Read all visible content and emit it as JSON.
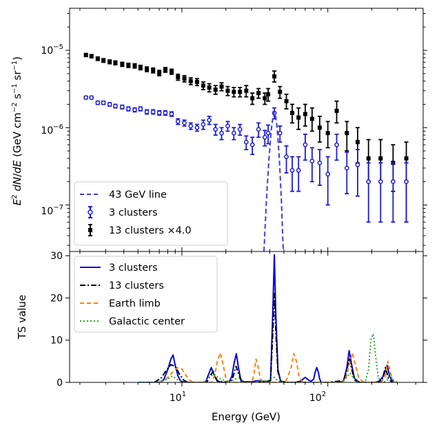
{
  "chart_data": [
    {
      "type": "scatter",
      "panel": "top",
      "xscale": "log",
      "yscale": "log",
      "xlim": [
        1.7,
        450
      ],
      "ylim": [
        2.5e-08,
        3.5e-05
      ],
      "ylabel": "E^2 dN/dE (GeV cm^-2 s^-1 sr^-1)",
      "ytick_values": [
        1e-07,
        1e-06,
        1e-05
      ],
      "ytick_labels": [
        {
          "base": "10",
          "exp": "−7"
        },
        {
          "base": "10",
          "exp": "−6"
        },
        {
          "base": "10",
          "exp": "−5"
        }
      ],
      "legend": {
        "position": "lower-left",
        "entries": [
          "43 GeV line",
          "3 clusters",
          "13 clusters ×4.0"
        ]
      },
      "series": [
        {
          "name": "13 clusters ×4.0",
          "color": "#000000",
          "marker": "square",
          "x": [
            2.2,
            2.4,
            2.65,
            2.9,
            3.2,
            3.5,
            3.9,
            4.3,
            4.75,
            5.2,
            5.75,
            6.35,
            7.0,
            7.7,
            8.5,
            9.4,
            10.4,
            11.5,
            12.7,
            14.0,
            15.4,
            17.0,
            18.7,
            20.6,
            22.7,
            25.0,
            27.6,
            30.4,
            33.5,
            37.0,
            39.0,
            43.0,
            47.0,
            52.0,
            57.0,
            63.0,
            70.0,
            78.0,
            88.0,
            100.0,
            115.0,
            135.0,
            160.0,
            190.0,
            230.0,
            280.0,
            345.0
          ],
          "y": [
            8.7e-06,
            8.4e-06,
            7.8e-06,
            7.4e-06,
            7.1e-06,
            6.9e-06,
            6.6e-06,
            6.4e-06,
            6.3e-06,
            6e-06,
            5.7e-06,
            5.5e-06,
            5.1e-06,
            5.6e-06,
            5.3e-06,
            4.5e-06,
            4.3e-06,
            4e-06,
            3.9e-06,
            3.5e-06,
            3.3e-06,
            3.1e-06,
            3.4e-06,
            3e-06,
            2.9e-06,
            2.9e-06,
            3e-06,
            2.4e-06,
            2.8e-06,
            2.4e-06,
            2.7e-06,
            4.6e-06,
            2.9e-06,
            2.2e-06,
            1.55e-06,
            1.35e-06,
            1.5e-06,
            1.3e-06,
            1e-06,
            8.5e-07,
            1.65e-06,
            8.5e-07,
            6.5e-07,
            4e-07,
            4e-07,
            3.5e-07,
            4e-07
          ],
          "yerr_low": [
            8.3e-06,
            8e-06,
            7.4e-06,
            7e-06,
            6.7e-06,
            6.5e-06,
            6.2e-06,
            6e-06,
            5.9e-06,
            5.6e-06,
            5.3e-06,
            5.1e-06,
            4.7e-06,
            5.2e-06,
            4.9e-06,
            4.1e-06,
            3.9e-06,
            3.6e-06,
            3.5e-06,
            3.1e-06,
            2.9e-06,
            2.7e-06,
            3e-06,
            2.6e-06,
            2.5e-06,
            2.5e-06,
            2.5e-06,
            2e-06,
            2.4e-06,
            2e-06,
            2.2e-06,
            3.9e-06,
            2.4e-06,
            1.75e-06,
            1.15e-06,
            9.5e-07,
            1.05e-06,
            9e-07,
            6.5e-07,
            5.5e-07,
            1.15e-06,
            5e-07,
            3.5e-07,
            2e-07,
            2e-07,
            1.5e-07,
            6e-08
          ],
          "yerr_high": [
            9.1e-06,
            8.8e-06,
            8.2e-06,
            7.8e-06,
            7.5e-06,
            7.3e-06,
            7e-06,
            6.8e-06,
            6.7e-06,
            6.4e-06,
            6.1e-06,
            5.9e-06,
            5.5e-06,
            6e-06,
            5.7e-06,
            4.9e-06,
            4.7e-06,
            4.4e-06,
            4.3e-06,
            3.9e-06,
            3.7e-06,
            3.5e-06,
            3.8e-06,
            3.4e-06,
            3.3e-06,
            3.3e-06,
            3.5e-06,
            2.8e-06,
            3.2e-06,
            2.8e-06,
            3.2e-06,
            5.4e-06,
            3.4e-06,
            2.7e-06,
            2e-06,
            1.8e-06,
            2e-06,
            1.8e-06,
            1.4e-06,
            1.2e-06,
            2.2e-06,
            1.2e-06,
            1e-06,
            7e-07,
            7e-07,
            6e-07,
            6.5e-07
          ]
        },
        {
          "name": "3 clusters",
          "color": "#1a1adb",
          "marker": "open-circle",
          "x": [
            2.2,
            2.4,
            2.65,
            2.9,
            3.2,
            3.5,
            3.9,
            4.3,
            4.75,
            5.2,
            5.75,
            6.35,
            7.0,
            7.7,
            8.5,
            9.4,
            10.4,
            11.5,
            12.7,
            14.0,
            15.4,
            17.0,
            18.7,
            20.6,
            22.7,
            25.0,
            27.6,
            30.4,
            33.5,
            37.0,
            39.0,
            43.0,
            47.0,
            52.0,
            57.0,
            63.0,
            70.0,
            78.0,
            88.0,
            100.0,
            115.0,
            135.0,
            160.0,
            190.0,
            230.0,
            280.0,
            345.0
          ],
          "y": [
            2.45e-06,
            2.45e-06,
            2.1e-06,
            2.1e-06,
            2e-06,
            1.9e-06,
            1.85e-06,
            1.75e-06,
            1.7e-06,
            1.75e-06,
            1.6e-06,
            1.6e-06,
            1.55e-06,
            1.55e-06,
            1.5e-06,
            1.2e-06,
            1.15e-06,
            1.05e-06,
            1e-06,
            1.1e-06,
            1.25e-06,
            9.5e-07,
            8.5e-07,
            1.05e-06,
            8.5e-07,
            9.5e-07,
            6.5e-07,
            6e-07,
            9.5e-07,
            7.5e-07,
            8.5e-07,
            1.55e-06,
            8.5e-07,
            4.2e-07,
            2.8e-07,
            2.8e-07,
            6e-07,
            3.7e-07,
            3.5e-07,
            2.5e-07,
            6e-07,
            3e-07,
            3.3e-07,
            2e-07,
            2e-07,
            2e-07,
            2e-07
          ],
          "yerr_low": [
            2.35e-06,
            2.35e-06,
            2e-06,
            2e-06,
            1.9e-06,
            1.8e-06,
            1.75e-06,
            1.65e-06,
            1.6e-06,
            1.65e-06,
            1.5e-06,
            1.5e-06,
            1.45e-06,
            1.45e-06,
            1.4e-06,
            1.1e-06,
            1.05e-06,
            9.5e-07,
            9e-07,
            9.5e-07,
            1.1e-06,
            8e-07,
            7e-07,
            9e-07,
            7e-07,
            8e-07,
            5.2e-07,
            4.5e-07,
            7.5e-07,
            5.8e-07,
            6.2e-07,
            1.3e-06,
            6.5e-07,
            2.6e-07,
            1.5e-07,
            1.5e-07,
            3.8e-07,
            2e-07,
            1.8e-07,
            1e-07,
            3.8e-07,
            1.4e-07,
            1.3e-07,
            6e-08,
            6e-08,
            6e-08,
            6e-08
          ],
          "yerr_high": [
            2.55e-06,
            2.55e-06,
            2.2e-06,
            2.2e-06,
            2.1e-06,
            2e-06,
            1.95e-06,
            1.85e-06,
            1.8e-06,
            1.85e-06,
            1.7e-06,
            1.7e-06,
            1.65e-06,
            1.65e-06,
            1.6e-06,
            1.3e-06,
            1.25e-06,
            1.15e-06,
            1.1e-06,
            1.25e-06,
            1.4e-06,
            1.1e-06,
            1e-06,
            1.2e-06,
            1e-06,
            1.1e-06,
            7.8e-07,
            7.5e-07,
            1.15e-06,
            9.2e-07,
            1.08e-06,
            1.8e-06,
            1.05e-06,
            5.8e-07,
            4.2e-07,
            4.2e-07,
            8.2e-07,
            5.5e-07,
            5.2e-07,
            4.2e-07,
            8.2e-07,
            4.8e-07,
            5.2e-07,
            3.5e-07,
            3.5e-07,
            3.5e-07,
            3.5e-07
          ]
        },
        {
          "name": "43 GeV line",
          "color": "#3a3ae6",
          "line": "dashed",
          "x": [
            36.5,
            38.0,
            39.5,
            41.0,
            42.2,
            43.0,
            43.8,
            45.0,
            46.5,
            48.0,
            49.5
          ],
          "y": [
            2.5e-08,
            1.2e-07,
            4e-07,
            9.5e-07,
            1.45e-06,
            1.6e-06,
            1.45e-06,
            9.5e-07,
            4e-07,
            1.2e-07,
            2.5e-08
          ]
        }
      ]
    },
    {
      "type": "line",
      "panel": "bottom",
      "xscale": "log",
      "xlim": [
        1.7,
        450
      ],
      "ylim": [
        0,
        31
      ],
      "xlabel": "Energy (GeV)",
      "ylabel": "TS value",
      "yticks": [
        0,
        10,
        20,
        30
      ],
      "xtick_values": [
        10,
        100
      ],
      "xtick_labels": [
        {
          "base": "10",
          "exp": "1"
        },
        {
          "base": "10",
          "exp": "2"
        }
      ],
      "legend": {
        "position": "upper-left",
        "entries": [
          "3 clusters",
          "13 clusters",
          "Earth limb",
          "Galactic center"
        ]
      },
      "series": [
        {
          "name": "3 clusters",
          "color": "#0000e0",
          "line": "solid",
          "x": [
            5.0,
            6.0,
            7.0,
            7.5,
            8.0,
            8.4,
            8.7,
            9.0,
            9.4,
            9.8,
            10.5,
            14.5,
            15.2,
            15.9,
            16.6,
            17.3,
            18.5,
            21.0,
            22.0,
            22.8,
            23.6,
            24.4,
            25.4,
            29.0,
            33.0,
            38.0,
            40.5,
            42.0,
            43.0,
            44.0,
            45.5,
            47.5,
            52.0,
            60.0,
            65.0,
            70.0,
            74.0,
            77.0,
            80.0,
            82.0,
            84.0,
            86.0,
            88.0,
            90.0,
            95.0,
            120.0,
            128.0,
            135.0,
            140.0,
            146.0,
            152.0,
            165.0,
            210.0,
            225.0,
            240.0,
            255.0,
            265.0,
            280.0
          ],
          "y": [
            0,
            0,
            0,
            0.6,
            3.0,
            5.5,
            6.5,
            4.0,
            1.5,
            0.3,
            0,
            0,
            1.8,
            3.5,
            1.8,
            0.5,
            0,
            0,
            1.5,
            4.5,
            6.8,
            3.5,
            0.3,
            0,
            0.4,
            0.2,
            0.5,
            17.0,
            30.2,
            16.0,
            3.0,
            0.3,
            0,
            0,
            0.3,
            1.2,
            0.5,
            0.3,
            0.8,
            2.5,
            3.5,
            2.5,
            0.8,
            0,
            0,
            0,
            0.3,
            3.5,
            7.5,
            4.0,
            1.0,
            0,
            0,
            0.3,
            1.5,
            4.0,
            1.5,
            0
          ]
        },
        {
          "name": "13 clusters",
          "color": "#000000",
          "line": "dashdot",
          "x": [
            6.5,
            7.2,
            7.8,
            8.4,
            9.0,
            9.6,
            10.3,
            11.0,
            14.8,
            15.6,
            16.4,
            17.5,
            21.5,
            22.5,
            23.5,
            24.6,
            25.8,
            38.0,
            40.5,
            42.0,
            43.0,
            44.0,
            45.5,
            47.5,
            52.0,
            100.0,
            128.0,
            135.0,
            140.0,
            146.0,
            153.0,
            165.0,
            220.0,
            235.0,
            248.0,
            260.0,
            275.0
          ],
          "y": [
            0,
            1.0,
            2.8,
            4.2,
            3.8,
            2.0,
            0.5,
            0,
            0,
            1.6,
            2.6,
            0.3,
            0,
            1.5,
            3.8,
            1.8,
            0.2,
            0,
            0.4,
            12.0,
            21.0,
            12.0,
            2.5,
            0.3,
            0,
            0,
            0.4,
            2.8,
            5.8,
            3.0,
            0.5,
            0,
            0,
            0.5,
            3.5,
            1.0,
            0
          ]
        },
        {
          "name": "Earth limb",
          "color": "#ff7f0e",
          "line": "dashed",
          "x": [
            7.0,
            7.6,
            8.2,
            8.8,
            9.4,
            10.0,
            10.6,
            11.3,
            12.0,
            13.0,
            16.0,
            16.8,
            17.5,
            18.3,
            19.1,
            20.0,
            21.0,
            24.0,
            26.0,
            30.0,
            31.0,
            32.2,
            33.4,
            34.6,
            36.0,
            38.0,
            48.0,
            52.0,
            56.0,
            58.5,
            61.0,
            63.5,
            66.5,
            70.0,
            110.0,
            125.0,
            133.0,
            140.0,
            147.0,
            155.0,
            163.0,
            172.0,
            182.0,
            200.0,
            230.0,
            245.0,
            258.0,
            270.0,
            285.0
          ],
          "y": [
            0,
            0.5,
            1.5,
            2.8,
            3.5,
            3.2,
            1.8,
            0.5,
            0,
            0,
            0,
            1.8,
            5.0,
            7.0,
            4.5,
            1.0,
            0,
            0,
            0,
            0,
            1.5,
            5.5,
            3.5,
            0.5,
            0,
            0,
            0,
            0.5,
            3.5,
            6.8,
            5.0,
            1.5,
            0.3,
            0,
            0,
            0,
            1.0,
            4.0,
            7.0,
            4.0,
            1.0,
            0.3,
            0,
            0,
            0,
            1.0,
            5.0,
            2.0,
            0
          ]
        },
        {
          "name": "Galactic center",
          "color": "#2ca02c",
          "line": "dotted",
          "x": [
            5.0,
            7.0,
            8.0,
            8.6,
            9.2,
            10.0,
            14.0,
            15.5,
            16.5,
            18.0,
            21.0,
            23.0,
            25.0,
            27.0,
            32.0,
            35.0,
            38.0,
            41.0,
            43.0,
            45.0,
            48.0,
            55.0,
            80.0,
            100.0,
            125.0,
            135.0,
            142.0,
            150.0,
            165.0,
            180.0,
            190.0,
            198.0,
            205.0,
            213.0,
            222.0,
            240.0,
            255.0,
            265.0,
            280.0,
            300.0
          ],
          "y": [
            0,
            0,
            0.8,
            1.5,
            0.8,
            0,
            0,
            1.2,
            2.0,
            1.0,
            0,
            0.8,
            1.0,
            0,
            0,
            0.5,
            0.3,
            0.8,
            1.2,
            0.5,
            0,
            0,
            0,
            0,
            0,
            1.2,
            2.2,
            1.0,
            0,
            0,
            3.0,
            10.5,
            11.5,
            6.0,
            1.0,
            0,
            0.5,
            2.0,
            0.5,
            0
          ]
        }
      ]
    }
  ]
}
